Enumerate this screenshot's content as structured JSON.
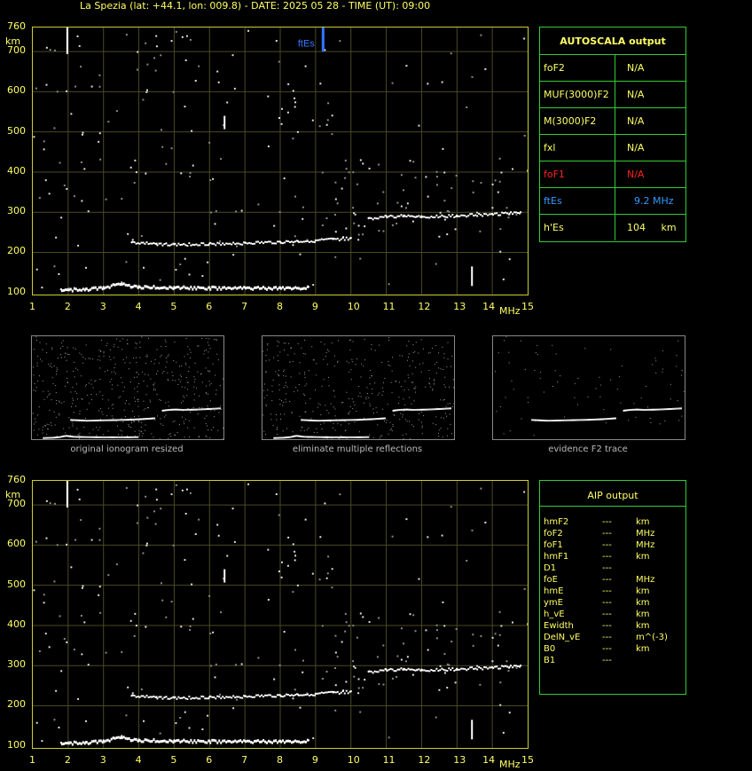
{
  "title": "La Spezia (lat: +44.1, lon: 009.8) - DATE: 2025 05 28 - TIME (UT): 09:00",
  "ionogram": {
    "y_unit": "km",
    "x_unit": "MHz",
    "y_ticks": [
      "760",
      "700",
      "600",
      "500",
      "400",
      "300",
      "200",
      "100"
    ],
    "x_ticks": [
      "1",
      "2",
      "3",
      "4",
      "5",
      "6",
      "7",
      "8",
      "9",
      "10",
      "11",
      "12",
      "13",
      "14",
      "15"
    ],
    "ftes_marker_label": "ftEs"
  },
  "autoscala": {
    "title": "AUTOSCALA output",
    "rows": [
      {
        "key": "foF2",
        "value": "N/A",
        "color": "#ffff66"
      },
      {
        "key": "MUF(3000)F2",
        "value": "N/A",
        "color": "#ffff66"
      },
      {
        "key": "M(3000)F2",
        "value": "N/A",
        "color": "#ffff66"
      },
      {
        "key": "fxl",
        "value": "N/A",
        "color": "#ffff66"
      },
      {
        "key": "foF1",
        "value": "N/A",
        "color": "#ff2222"
      },
      {
        "key": "ftEs",
        "value": "9.2 MHz",
        "color": "#3399ff"
      },
      {
        "key": "h'Es",
        "value": "104     km",
        "color": "#ffff66"
      }
    ]
  },
  "thumbnails": [
    {
      "caption": "original ionogram resized"
    },
    {
      "caption": "eliminate multiple reflections"
    },
    {
      "caption": "evidence F2 trace"
    }
  ],
  "aip": {
    "title": "AIP output",
    "rows": [
      {
        "param": "hmF2",
        "value": "---",
        "unit": "km"
      },
      {
        "param": "foF2",
        "value": "---",
        "unit": "MHz"
      },
      {
        "param": "foF1",
        "value": "---",
        "unit": "MHz"
      },
      {
        "param": "hmF1",
        "value": "---",
        "unit": "km"
      },
      {
        "param": "D1",
        "value": "---",
        "unit": ""
      },
      {
        "param": "foE",
        "value": "---",
        "unit": "MHz"
      },
      {
        "param": "hmE",
        "value": "---",
        "unit": "km"
      },
      {
        "param": "ymE",
        "value": "---",
        "unit": "km"
      },
      {
        "param": "h_vE",
        "value": "---",
        "unit": "km"
      },
      {
        "param": "Ewidth",
        "value": "---",
        "unit": "km"
      },
      {
        "param": "DelN_vE",
        "value": "---",
        "unit": "m^(-3)"
      },
      {
        "param": "B0",
        "value": "---",
        "unit": "km"
      },
      {
        "param": "B1",
        "value": "---",
        "unit": ""
      }
    ]
  },
  "chart_data": [
    {
      "type": "scatter",
      "title": "",
      "xlabel": "MHz",
      "ylabel": "km",
      "xlim": [
        1,
        15
      ],
      "ylim": [
        95,
        760
      ],
      "grid": true,
      "series": [
        {
          "values": [
            [
              1.8,
              108
            ],
            [
              2.5,
              110
            ],
            [
              3.0,
              114
            ],
            [
              3.3,
              120
            ],
            [
              3.5,
              122
            ],
            [
              4,
              116
            ],
            [
              5,
              114
            ],
            [
              6,
              113
            ],
            [
              7,
              113
            ],
            [
              8,
              113
            ],
            [
              8.8,
              114
            ]
          ]
        },
        {
          "values": [
            [
              3.8,
              225
            ],
            [
              4.5,
              222
            ],
            [
              5,
              220
            ],
            [
              6,
              222
            ],
            [
              7,
              224
            ],
            [
              8,
              226
            ],
            [
              8.5,
              228
            ],
            [
              9,
              230
            ],
            [
              9.5,
              233
            ],
            [
              10,
              236
            ]
          ]
        },
        {
          "values": [
            [
              10.5,
              285
            ],
            [
              11,
              290
            ],
            [
              11.5,
              292
            ],
            [
              12,
              290
            ],
            [
              13,
              292
            ],
            [
              14,
              296
            ],
            [
              14.8,
              300
            ]
          ]
        }
      ],
      "ftEs_MHz": 9.2,
      "hEs_km": 104
    },
    {
      "type": "scatter",
      "title": "",
      "xlabel": "MHz",
      "ylabel": "km",
      "xlim": [
        1,
        15
      ],
      "ylim": [
        95,
        760
      ],
      "grid": true,
      "series": [
        {
          "values": [
            [
              1.8,
              108
            ],
            [
              2.5,
              110
            ],
            [
              3.0,
              114
            ],
            [
              3.3,
              120
            ],
            [
              3.5,
              122
            ],
            [
              4,
              116
            ],
            [
              5,
              114
            ],
            [
              6,
              113
            ],
            [
              7,
              113
            ],
            [
              8,
              113
            ],
            [
              8.8,
              114
            ]
          ]
        },
        {
          "values": [
            [
              3.8,
              225
            ],
            [
              4.5,
              222
            ],
            [
              5,
              220
            ],
            [
              6,
              222
            ],
            [
              7,
              224
            ],
            [
              8,
              226
            ],
            [
              8.5,
              228
            ],
            [
              9,
              230
            ],
            [
              9.5,
              233
            ],
            [
              10,
              236
            ]
          ]
        },
        {
          "values": [
            [
              10.5,
              285
            ],
            [
              11,
              290
            ],
            [
              11.5,
              292
            ],
            [
              12,
              290
            ],
            [
              13,
              292
            ],
            [
              14,
              296
            ],
            [
              14.8,
              300
            ]
          ]
        }
      ]
    }
  ]
}
